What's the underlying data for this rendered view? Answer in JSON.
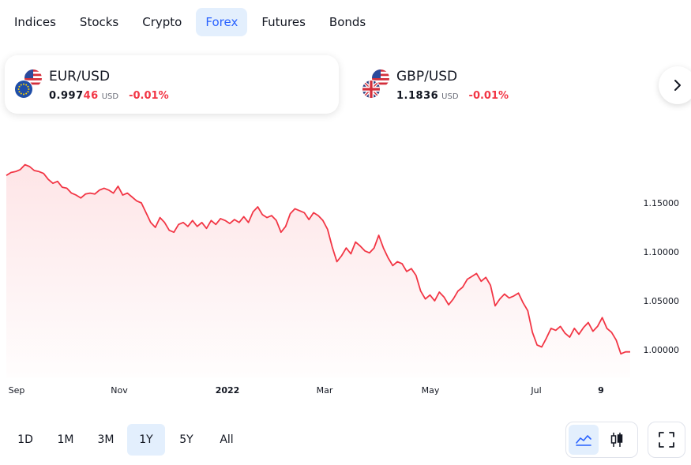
{
  "tabs": [
    {
      "label": "Indices"
    },
    {
      "label": "Stocks"
    },
    {
      "label": "Crypto"
    },
    {
      "label": "Forex",
      "active": true
    },
    {
      "label": "Futures"
    },
    {
      "label": "Bonds"
    }
  ],
  "cards": [
    {
      "pair": "EUR/USD",
      "price_main": "0.997",
      "price_highlight": "46",
      "unit": "USD",
      "change": "-0.01%",
      "flags": [
        "us-flag-icon",
        "eu-flag-icon"
      ],
      "active": true
    },
    {
      "pair": "GBP/USD",
      "price_main": "1.1836",
      "price_highlight": "",
      "unit": "USD",
      "change": "-0.01%",
      "flags": [
        "us-flag-icon",
        "uk-flag-icon"
      ],
      "active": false
    }
  ],
  "next_icon": "chevron-right-icon",
  "chart_data": {
    "type": "area",
    "title": "",
    "xlabel": "",
    "ylabel": "",
    "x_tick_labels": [
      "Sep",
      "Nov",
      "2022",
      "Mar",
      "May",
      "Jul",
      "9"
    ],
    "x_tick_bold": [
      false,
      false,
      true,
      false,
      false,
      false,
      true
    ],
    "y_ticks": [
      "1.15000",
      "1.10000",
      "1.05000",
      "1.00000"
    ],
    "y_tick_values": [
      1.15,
      1.1,
      1.05,
      1.0
    ],
    "ylim": [
      0.972,
      1.212
    ],
    "grid": false,
    "line_color": "#f23645",
    "fill_color": "#f23645",
    "series": [
      {
        "values": [
          1.178,
          1.181,
          1.182,
          1.184,
          1.189,
          1.187,
          1.183,
          1.182,
          1.18,
          1.174,
          1.17,
          1.172,
          1.166,
          1.165,
          1.16,
          1.158,
          1.155,
          1.159,
          1.16,
          1.159,
          1.163,
          1.165,
          1.163,
          1.16,
          1.167,
          1.158,
          1.16,
          1.156,
          1.152,
          1.15,
          1.14,
          1.13,
          1.125,
          1.135,
          1.13,
          1.122,
          1.12,
          1.128,
          1.13,
          1.126,
          1.132,
          1.126,
          1.13,
          1.124,
          1.132,
          1.128,
          1.134,
          1.132,
          1.129,
          1.133,
          1.13,
          1.136,
          1.13,
          1.141,
          1.146,
          1.138,
          1.135,
          1.137,
          1.132,
          1.12,
          1.126,
          1.139,
          1.144,
          1.142,
          1.14,
          1.133,
          1.14,
          1.137,
          1.132,
          1.123,
          1.105,
          1.09,
          1.096,
          1.104,
          1.098,
          1.11,
          1.106,
          1.101,
          1.099,
          1.104,
          1.117,
          1.104,
          1.094,
          1.086,
          1.09,
          1.088,
          1.08,
          1.083,
          1.076,
          1.06,
          1.052,
          1.056,
          1.05,
          1.059,
          1.054,
          1.046,
          1.052,
          1.06,
          1.064,
          1.072,
          1.075,
          1.078,
          1.07,
          1.074,
          1.066,
          1.045,
          1.052,
          1.057,
          1.053,
          1.055,
          1.058,
          1.048,
          1.04,
          1.018,
          1.005,
          1.003,
          1.012,
          1.022,
          1.02,
          1.024,
          1.017,
          1.013,
          1.022,
          1.016,
          1.023,
          1.028,
          1.019,
          1.024,
          1.033,
          1.022,
          1.018,
          1.01,
          0.996,
          0.998,
          0.998
        ]
      }
    ]
  },
  "ranges": [
    {
      "label": "1D"
    },
    {
      "label": "1M"
    },
    {
      "label": "3M"
    },
    {
      "label": "1Y",
      "active": true
    },
    {
      "label": "5Y"
    },
    {
      "label": "All"
    }
  ],
  "chart_type_buttons": [
    {
      "icon": "area-chart-icon",
      "active": true
    },
    {
      "icon": "candlestick-icon",
      "active": false
    }
  ],
  "fullscreen_icon": "fullscreen-icon",
  "colors": {
    "accent": "#2962ff",
    "active_bg": "#e3effd",
    "negative": "#f23645",
    "text": "#131722",
    "muted": "#6a6d78"
  }
}
